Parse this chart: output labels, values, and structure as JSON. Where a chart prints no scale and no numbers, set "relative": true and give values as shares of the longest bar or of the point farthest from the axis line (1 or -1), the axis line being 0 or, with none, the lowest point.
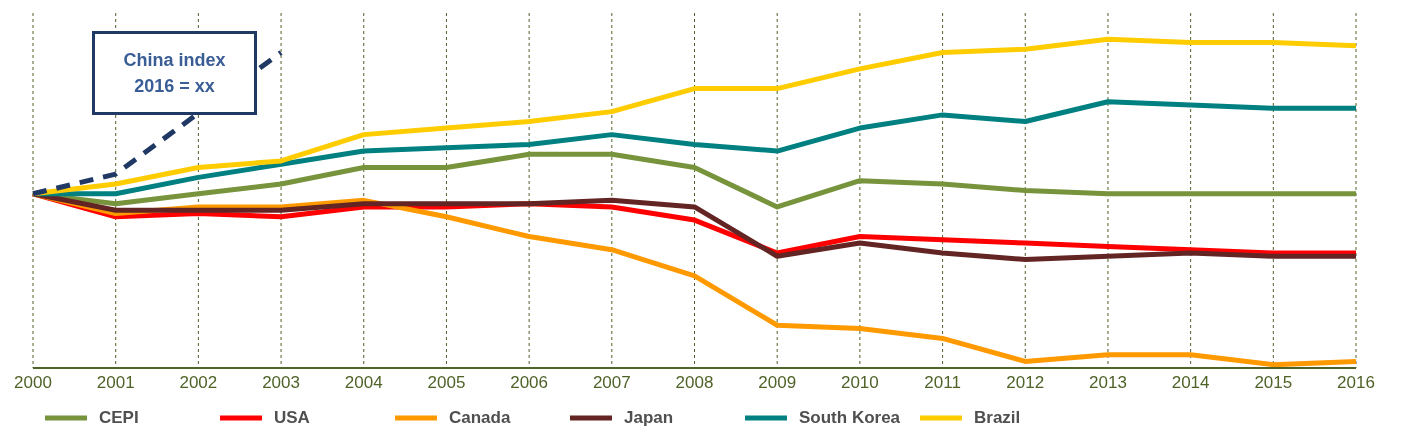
{
  "chart_data": {
    "type": "line",
    "relative": true,
    "grid": "x",
    "legend": "bottom",
    "marker": "none",
    "categories": [
      "2000",
      "2001",
      "2002",
      "2003",
      "2004",
      "2005",
      "2006",
      "2007",
      "2008",
      "2009",
      "2010",
      "2011",
      "2012",
      "2013",
      "2014",
      "2015",
      "2016"
    ],
    "annotations": [
      "China index\n2016 = xx"
    ],
    "series": [
      {
        "name": "CEPI",
        "color": "#77933c",
        "values": [
          0.53,
          0.5,
          0.53,
          0.56,
          0.61,
          0.61,
          0.65,
          0.65,
          0.61,
          0.49,
          0.57,
          0.56,
          0.54,
          0.53,
          0.53,
          0.53,
          0.53
        ]
      },
      {
        "name": "USA",
        "color": "#ff0000",
        "values": [
          0.53,
          0.46,
          0.47,
          0.46,
          0.49,
          0.49,
          0.5,
          0.49,
          0.45,
          0.35,
          0.4,
          0.39,
          0.38,
          0.37,
          0.36,
          0.35,
          0.35
        ]
      },
      {
        "name": "Canada",
        "color": "#ff9900",
        "values": [
          0.53,
          0.47,
          0.49,
          0.49,
          0.51,
          0.46,
          0.4,
          0.36,
          0.28,
          0.13,
          0.12,
          0.09,
          0.02,
          0.04,
          0.04,
          0.01,
          0.02
        ]
      },
      {
        "name": "Japan",
        "color": "#632523",
        "values": [
          0.53,
          0.48,
          0.48,
          0.48,
          0.5,
          0.5,
          0.5,
          0.51,
          0.49,
          0.34,
          0.38,
          0.35,
          0.33,
          0.34,
          0.35,
          0.34,
          0.34
        ]
      },
      {
        "name": "South Korea",
        "color": "#008080",
        "values": [
          0.53,
          0.53,
          0.58,
          0.62,
          0.66,
          0.67,
          0.68,
          0.71,
          0.68,
          0.66,
          0.73,
          0.77,
          0.75,
          0.81,
          0.8,
          0.79,
          0.79
        ]
      },
      {
        "name": "Brazil",
        "color": "#ffcc00",
        "values": [
          0.53,
          0.56,
          0.61,
          0.63,
          0.71,
          0.73,
          0.75,
          0.78,
          0.85,
          0.85,
          0.91,
          0.96,
          0.97,
          1,
          0.99,
          0.99,
          0.98
        ]
      },
      {
        "color": "#1f3864",
        "line_style": "dashed",
        "values": [
          0.53,
          0.59,
          null,
          0.96,
          null,
          null,
          null,
          null,
          null,
          null,
          null,
          null,
          null,
          null,
          null,
          null,
          null
        ]
      }
    ]
  }
}
